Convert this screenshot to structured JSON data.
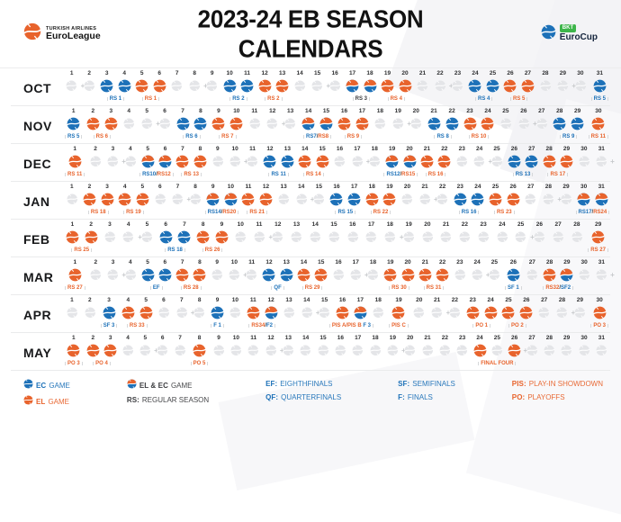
{
  "header": {
    "title": "2023-24 EB SEASON CALENDARS",
    "left_logo": {
      "line1": "TURKISH AIRLINES",
      "line2": "EuroLeague"
    },
    "right_logo": {
      "badge": "BKT",
      "name": "EuroCup"
    }
  },
  "colors": {
    "el": "#E8632C",
    "ec": "#1D71B8",
    "empty": "#E4E5E8",
    "green": "#3DB54A"
  },
  "months": [
    {
      "name": "OCT",
      "days": 31,
      "sundays": [
        1,
        8,
        15,
        22,
        29
      ],
      "games": {
        "3": "ec",
        "4": "ec",
        "5": "el",
        "6": "el",
        "10": "ec",
        "11": "ec",
        "12": "el",
        "13": "el",
        "17": "both",
        "18": "both",
        "19": "el",
        "20": "el",
        "24": "ec",
        "25": "ec",
        "26": "el",
        "27": "el",
        "31": "ec"
      },
      "labels": [
        {
          "d": 3,
          "s": 2,
          "p": [
            {
              "t": "RS 1",
              "c": "ec"
            }
          ]
        },
        {
          "d": 5,
          "s": 2,
          "p": [
            {
              "t": "RS 1",
              "c": "el"
            }
          ]
        },
        {
          "d": 10,
          "s": 2,
          "p": [
            {
              "t": "RS 2",
              "c": "ec"
            }
          ]
        },
        {
          "d": 12,
          "s": 2,
          "p": [
            {
              "t": "RS 2",
              "c": "el"
            }
          ]
        },
        {
          "d": 17,
          "s": 2,
          "p": [
            {
              "t": "RS 3",
              "c": "dk"
            }
          ]
        },
        {
          "d": 19,
          "s": 2,
          "p": [
            {
              "t": "RS 4",
              "c": "el"
            }
          ]
        },
        {
          "d": 24,
          "s": 2,
          "p": [
            {
              "t": "RS 4",
              "c": "ec"
            }
          ]
        },
        {
          "d": 26,
          "s": 2,
          "p": [
            {
              "t": "RS 5",
              "c": "el"
            }
          ]
        },
        {
          "d": 31,
          "s": 1,
          "p": [
            {
              "t": "RS 5",
              "c": "ec"
            }
          ]
        }
      ]
    },
    {
      "name": "NOV",
      "days": 30,
      "sundays": [
        5,
        12,
        19,
        26
      ],
      "games": {
        "1": "ec",
        "2": "el",
        "3": "el",
        "7": "ec",
        "8": "ec",
        "9": "el",
        "10": "el",
        "14": "both",
        "15": "both",
        "16": "el",
        "17": "el",
        "21": "ec",
        "22": "ec",
        "23": "el",
        "24": "el",
        "28": "ec",
        "29": "ec",
        "30": "el"
      },
      "labels": [
        {
          "d": 1,
          "s": 1,
          "p": [
            {
              "t": "RS 5",
              "c": "ec"
            }
          ]
        },
        {
          "d": 2,
          "s": 2,
          "p": [
            {
              "t": "RS 6",
              "c": "el"
            }
          ]
        },
        {
          "d": 7,
          "s": 2,
          "p": [
            {
              "t": "RS 6",
              "c": "ec"
            }
          ]
        },
        {
          "d": 9,
          "s": 2,
          "p": [
            {
              "t": "RS 7",
              "c": "el"
            }
          ]
        },
        {
          "d": 14,
          "s": 2,
          "p": [
            {
              "t": "RS7",
              "c": "ec"
            },
            {
              "t": "/",
              "c": "dk"
            },
            {
              "t": "RS8",
              "c": "el"
            }
          ]
        },
        {
          "d": 16,
          "s": 2,
          "p": [
            {
              "t": "RS 9",
              "c": "el"
            }
          ]
        },
        {
          "d": 21,
          "s": 2,
          "p": [
            {
              "t": "RS 8",
              "c": "ec"
            }
          ]
        },
        {
          "d": 23,
          "s": 2,
          "p": [
            {
              "t": "RS 10",
              "c": "el"
            }
          ]
        },
        {
          "d": 28,
          "s": 2,
          "p": [
            {
              "t": "RS 9",
              "c": "ec"
            }
          ]
        },
        {
          "d": 30,
          "s": 1,
          "p": [
            {
              "t": "RS 11",
              "c": "el"
            }
          ]
        }
      ]
    },
    {
      "name": "DEC",
      "days": 31,
      "sundays": [
        3,
        10,
        17,
        24,
        31
      ],
      "games": {
        "1": "el",
        "5": "both",
        "6": "both",
        "7": "el",
        "8": "el",
        "12": "ec",
        "13": "ec",
        "14": "el",
        "15": "el",
        "19": "both",
        "20": "both",
        "21": "el",
        "22": "el",
        "26": "ec",
        "27": "ec",
        "28": "el",
        "29": "el"
      },
      "labels": [
        {
          "d": 1,
          "s": 1,
          "p": [
            {
              "t": "RS 11",
              "c": "el"
            }
          ]
        },
        {
          "d": 5,
          "s": 2,
          "p": [
            {
              "t": "RS10",
              "c": "ec"
            },
            {
              "t": "/",
              "c": "dk"
            },
            {
              "t": "RS12",
              "c": "el"
            }
          ]
        },
        {
          "d": 7,
          "s": 2,
          "p": [
            {
              "t": "RS 13",
              "c": "el"
            }
          ]
        },
        {
          "d": 12,
          "s": 2,
          "p": [
            {
              "t": "RS 11",
              "c": "ec"
            }
          ]
        },
        {
          "d": 14,
          "s": 2,
          "p": [
            {
              "t": "RS 14",
              "c": "el"
            }
          ]
        },
        {
          "d": 19,
          "s": 2,
          "p": [
            {
              "t": "RS12",
              "c": "ec"
            },
            {
              "t": "/",
              "c": "dk"
            },
            {
              "t": "RS15",
              "c": "el"
            }
          ]
        },
        {
          "d": 21,
          "s": 2,
          "p": [
            {
              "t": "RS 16",
              "c": "el"
            }
          ]
        },
        {
          "d": 26,
          "s": 2,
          "p": [
            {
              "t": "RS 13",
              "c": "ec"
            }
          ]
        },
        {
          "d": 28,
          "s": 2,
          "p": [
            {
              "t": "RS 17",
              "c": "el"
            }
          ]
        }
      ]
    },
    {
      "name": "JAN",
      "days": 31,
      "sundays": [
        7,
        14,
        21,
        28
      ],
      "games": {
        "2": "el",
        "3": "el",
        "4": "el",
        "5": "el",
        "9": "both",
        "10": "both",
        "11": "el",
        "12": "el",
        "16": "ec",
        "17": "ec",
        "18": "el",
        "19": "el",
        "23": "ec",
        "24": "ec",
        "25": "el",
        "26": "el",
        "30": "both",
        "31": "both"
      },
      "labels": [
        {
          "d": 2,
          "s": 2,
          "p": [
            {
              "t": "RS 18",
              "c": "el"
            }
          ]
        },
        {
          "d": 4,
          "s": 2,
          "p": [
            {
              "t": "RS 19",
              "c": "el"
            }
          ]
        },
        {
          "d": 9,
          "s": 2,
          "p": [
            {
              "t": "RS14",
              "c": "ec"
            },
            {
              "t": "/",
              "c": "dk"
            },
            {
              "t": "RS20",
              "c": "el"
            }
          ]
        },
        {
          "d": 11,
          "s": 2,
          "p": [
            {
              "t": "RS 21",
              "c": "el"
            }
          ]
        },
        {
          "d": 16,
          "s": 2,
          "p": [
            {
              "t": "RS 15",
              "c": "ec"
            }
          ]
        },
        {
          "d": 18,
          "s": 2,
          "p": [
            {
              "t": "RS 22",
              "c": "el"
            }
          ]
        },
        {
          "d": 23,
          "s": 2,
          "p": [
            {
              "t": "RS 16",
              "c": "ec"
            }
          ]
        },
        {
          "d": 25,
          "s": 2,
          "p": [
            {
              "t": "RS 23",
              "c": "el"
            }
          ]
        },
        {
          "d": 30,
          "s": 2,
          "p": [
            {
              "t": "RS17",
              "c": "ec"
            },
            {
              "t": "/",
              "c": "dk"
            },
            {
              "t": "RS24",
              "c": "el"
            }
          ]
        }
      ]
    },
    {
      "name": "FEB",
      "days": 29,
      "sundays": [
        4,
        11,
        18,
        25
      ],
      "games": {
        "1": "el",
        "2": "el",
        "6": "ec",
        "7": "ec",
        "8": "el",
        "9": "el",
        "29": "el"
      },
      "labels": [
        {
          "d": 1,
          "s": 2,
          "p": [
            {
              "t": "RS 25",
              "c": "el"
            }
          ]
        },
        {
          "d": 6,
          "s": 2,
          "p": [
            {
              "t": "RS 18",
              "c": "ec"
            }
          ]
        },
        {
          "d": 8,
          "s": 2,
          "p": [
            {
              "t": "RS 26",
              "c": "el"
            }
          ]
        },
        {
          "d": 29,
          "s": 1,
          "p": [
            {
              "t": "RS 27",
              "c": "el"
            }
          ]
        }
      ]
    },
    {
      "name": "MAR",
      "days": 31,
      "sundays": [
        3,
        10,
        17,
        24,
        31
      ],
      "games": {
        "1": "el",
        "5": "ec",
        "6": "ec",
        "7": "el",
        "8": "el",
        "12": "ec",
        "13": "ec",
        "14": "el",
        "15": "el",
        "19": "el",
        "20": "el",
        "21": "el",
        "22": "el",
        "26": "ec",
        "28": "el",
        "29": "both"
      },
      "labels": [
        {
          "d": 1,
          "s": 1,
          "p": [
            {
              "t": "RS 27",
              "c": "el"
            }
          ]
        },
        {
          "d": 5,
          "s": 2,
          "p": [
            {
              "t": "EF",
              "c": "ec"
            }
          ]
        },
        {
          "d": 7,
          "s": 2,
          "p": [
            {
              "t": "RS 28",
              "c": "el"
            }
          ]
        },
        {
          "d": 12,
          "s": 2,
          "p": [
            {
              "t": "QF",
              "c": "ec"
            }
          ]
        },
        {
          "d": 14,
          "s": 2,
          "p": [
            {
              "t": "RS 29",
              "c": "el"
            }
          ]
        },
        {
          "d": 19,
          "s": 2,
          "p": [
            {
              "t": "RS 30",
              "c": "el"
            }
          ]
        },
        {
          "d": 21,
          "s": 2,
          "p": [
            {
              "t": "RS 31",
              "c": "el"
            }
          ]
        },
        {
          "d": 26,
          "s": 1,
          "p": [
            {
              "t": "SF 1",
              "c": "ec"
            }
          ]
        },
        {
          "d": 28,
          "s": 2,
          "p": [
            {
              "t": "RS32",
              "c": "el"
            },
            {
              "t": "/",
              "c": "dk"
            },
            {
              "t": "SF2",
              "c": "ec"
            }
          ]
        }
      ]
    },
    {
      "name": "APR",
      "days": 30,
      "sundays": [
        7,
        14,
        21,
        28
      ],
      "games": {
        "3": "ec",
        "4": "el",
        "5": "el",
        "9": "ec",
        "11": "el",
        "12": "both",
        "16": "el",
        "17": "both",
        "19": "el",
        "23": "el",
        "24": "el",
        "25": "el",
        "26": "el",
        "30": "el"
      },
      "labels": [
        {
          "d": 3,
          "s": 1,
          "p": [
            {
              "t": "SF 3",
              "c": "ec"
            }
          ]
        },
        {
          "d": 4,
          "s": 2,
          "p": [
            {
              "t": "RS 33",
              "c": "el"
            }
          ]
        },
        {
          "d": 9,
          "s": 1,
          "p": [
            {
              "t": "F 1",
              "c": "ec"
            }
          ]
        },
        {
          "d": 11,
          "s": 2,
          "p": [
            {
              "t": "RS34",
              "c": "el"
            },
            {
              "t": "/",
              "c": "dk"
            },
            {
              "t": "F2",
              "c": "ec"
            }
          ]
        },
        {
          "d": 16,
          "s": 2,
          "p": [
            {
              "t": "PIS A/PIS B",
              "c": "el"
            },
            {
              "t": " F 3",
              "c": "ec"
            }
          ]
        },
        {
          "d": 19,
          "s": 1,
          "p": [
            {
              "t": "PIS C",
              "c": "el"
            }
          ]
        },
        {
          "d": 23,
          "s": 2,
          "p": [
            {
              "t": "PO 1",
              "c": "el"
            }
          ]
        },
        {
          "d": 25,
          "s": 2,
          "p": [
            {
              "t": "PO 2",
              "c": "el"
            }
          ]
        },
        {
          "d": 30,
          "s": 1,
          "p": [
            {
              "t": "PO 3",
              "c": "el"
            }
          ]
        }
      ]
    },
    {
      "name": "MAY",
      "days": 31,
      "sundays": [
        5,
        12,
        19,
        26
      ],
      "games": {
        "1": "el",
        "2": "el",
        "3": "el",
        "8": "el",
        "24": "el",
        "26": "el"
      },
      "labels": [
        {
          "d": 1,
          "s": 1,
          "p": [
            {
              "t": "PO 3",
              "c": "el"
            }
          ]
        },
        {
          "d": 2,
          "s": 2,
          "p": [
            {
              "t": "PO 4",
              "c": "el"
            }
          ]
        },
        {
          "d": 8,
          "s": 1,
          "p": [
            {
              "t": "PO 5",
              "c": "el"
            }
          ]
        },
        {
          "d": 24,
          "s": 3,
          "p": [
            {
              "t": "FINAL FOUR",
              "c": "el"
            }
          ]
        }
      ]
    }
  ],
  "legend": {
    "columns": [
      {
        "entries": [
          {
            "icon": "ec",
            "strong": "EC",
            "rest": "GAME",
            "color": "ec"
          },
          {
            "icon": "el",
            "strong": "EL",
            "rest": "GAME",
            "color": "el"
          }
        ]
      },
      {
        "entries": [
          {
            "icon": "both",
            "strong": "EL & EC",
            "rest": "GAME",
            "color": "dk"
          },
          {
            "icon": null,
            "strong": "RS:",
            "rest": "REGULAR SEASON",
            "color": "dk"
          }
        ]
      },
      {
        "entries": [
          {
            "icon": null,
            "strong": "EF:",
            "rest": "EIGHTHFINALS",
            "color": "ec"
          },
          {
            "icon": null,
            "strong": "QF:",
            "rest": "QUARTERFINALS",
            "color": "ec"
          }
        ]
      },
      {
        "entries": [
          {
            "icon": null,
            "strong": "SF:",
            "rest": "SEMIFINALS",
            "color": "ec"
          },
          {
            "icon": null,
            "strong": "F:",
            "rest": "FINALS",
            "color": "ec"
          }
        ]
      },
      {
        "entries": [
          {
            "icon": null,
            "strong": "PIS:",
            "rest": "PLAY-IN SHOWDOWN",
            "color": "el"
          },
          {
            "icon": null,
            "strong": "PO:",
            "rest": "PLAYOFFS",
            "color": "el"
          }
        ]
      }
    ]
  }
}
